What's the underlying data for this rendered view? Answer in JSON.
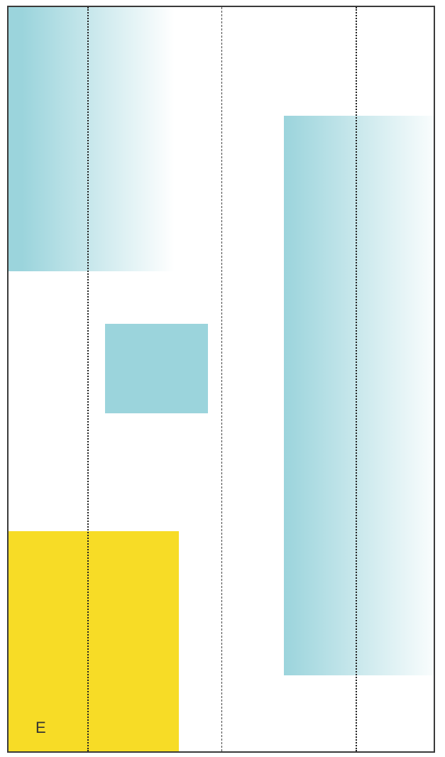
{
  "diagram": {
    "label": "E",
    "colors": {
      "frame_border": "#3a3a3a",
      "cyan": "#9bd4dc",
      "yellow": "#f7dc26",
      "guide": "#222222",
      "background": "#ffffff"
    }
  }
}
